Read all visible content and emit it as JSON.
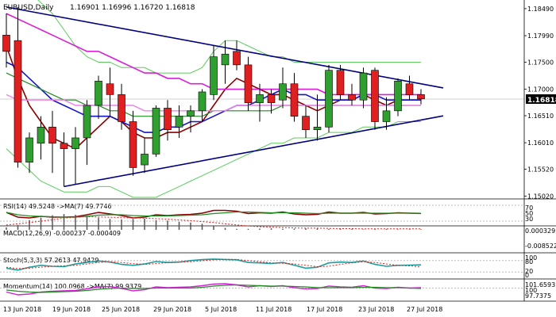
{
  "main": {
    "header": {
      "symbol": "EURUSD,Daily",
      "ohlc": "1.16901 1.16996 1.16720 1.16818"
    },
    "current_price": "1.16818",
    "price_labels": [
      "1.18490",
      "1.17990",
      "1.17500",
      "1.17000",
      "1.16510",
      "1.16010",
      "1.15520",
      "1.15020"
    ],
    "colors": {
      "bull_body": "#2fa02f",
      "bear_body": "#e02020",
      "wick": "#000000",
      "ma_fast": "#8b0000",
      "ma_mid": "#1414c8",
      "ma_slow": "#228b22",
      "ma_long": "#d81ed8",
      "ma_long2": "#ee82ee",
      "bb_band": "#5ccc5c",
      "trend_lines": "#000080"
    }
  },
  "panels": {
    "rsi": {
      "label": "RSI(14) 49.5248 ->MA(7) 49.7746",
      "scale": [
        "70",
        "50",
        "30"
      ]
    },
    "macd": {
      "label": "MACD(12,26,9) -0.000237 -0.000409",
      "scale": [
        "0.000329",
        "-0.008522"
      ]
    },
    "stoch": {
      "label": "Stoch(5,3,3) 57.2613 47.9429",
      "scale": [
        "100",
        "80",
        "20",
        "0"
      ]
    },
    "momentum": {
      "label": "Momentum(14) 100.0968 ->MA(7) 99.9379",
      "scale": [
        "101.6593",
        "100",
        "97.7375"
      ]
    }
  },
  "x_axis": [
    "13 Jun 2018",
    "19 Jun 2018",
    "25 Jun 2018",
    "29 Jun 2018",
    "5 Jul 2018",
    "11 Jul 2018",
    "17 Jul 2018",
    "23 Jul 2018",
    "27 Jul 2018"
  ],
  "chart_data": {
    "type": "candlestick",
    "symbol": "EURUSD",
    "timeframe": "Daily",
    "candles": [
      {
        "o": 1.18,
        "h": 1.184,
        "l": 1.174,
        "c": 1.177
      },
      {
        "o": 1.179,
        "h": 1.1852,
        "l": 1.1555,
        "c": 1.1565
      },
      {
        "o": 1.1565,
        "h": 1.162,
        "l": 1.1545,
        "c": 1.161
      },
      {
        "o": 1.16,
        "h": 1.165,
        "l": 1.157,
        "c": 1.163
      },
      {
        "o": 1.163,
        "h": 1.166,
        "l": 1.1545,
        "c": 1.16
      },
      {
        "o": 1.16,
        "h": 1.162,
        "l": 1.152,
        "c": 1.159
      },
      {
        "o": 1.159,
        "h": 1.163,
        "l": 1.1525,
        "c": 1.161
      },
      {
        "o": 1.161,
        "h": 1.168,
        "l": 1.156,
        "c": 1.167
      },
      {
        "o": 1.167,
        "h": 1.1725,
        "l": 1.1645,
        "c": 1.1715
      },
      {
        "o": 1.171,
        "h": 1.174,
        "l": 1.165,
        "c": 1.169
      },
      {
        "o": 1.169,
        "h": 1.171,
        "l": 1.1625,
        "c": 1.164
      },
      {
        "o": 1.164,
        "h": 1.166,
        "l": 1.154,
        "c": 1.1555
      },
      {
        "o": 1.156,
        "h": 1.161,
        "l": 1.1545,
        "c": 1.158
      },
      {
        "o": 1.158,
        "h": 1.167,
        "l": 1.1575,
        "c": 1.1665
      },
      {
        "o": 1.1665,
        "h": 1.168,
        "l": 1.1605,
        "c": 1.1625
      },
      {
        "o": 1.163,
        "h": 1.167,
        "l": 1.161,
        "c": 1.165
      },
      {
        "o": 1.165,
        "h": 1.167,
        "l": 1.162,
        "c": 1.166
      },
      {
        "o": 1.166,
        "h": 1.17,
        "l": 1.164,
        "c": 1.1695
      },
      {
        "o": 1.169,
        "h": 1.178,
        "l": 1.168,
        "c": 1.176
      },
      {
        "o": 1.1745,
        "h": 1.179,
        "l": 1.171,
        "c": 1.1765
      },
      {
        "o": 1.177,
        "h": 1.179,
        "l": 1.1735,
        "c": 1.1745
      },
      {
        "o": 1.1745,
        "h": 1.176,
        "l": 1.166,
        "c": 1.1675
      },
      {
        "o": 1.1675,
        "h": 1.171,
        "l": 1.164,
        "c": 1.169
      },
      {
        "o": 1.169,
        "h": 1.17,
        "l": 1.1655,
        "c": 1.1675
      },
      {
        "o": 1.168,
        "h": 1.174,
        "l": 1.1665,
        "c": 1.171
      },
      {
        "o": 1.171,
        "h": 1.173,
        "l": 1.164,
        "c": 1.165
      },
      {
        "o": 1.165,
        "h": 1.167,
        "l": 1.161,
        "c": 1.1625
      },
      {
        "o": 1.1625,
        "h": 1.169,
        "l": 1.1605,
        "c": 1.163
      },
      {
        "o": 1.163,
        "h": 1.1745,
        "l": 1.162,
        "c": 1.1735
      },
      {
        "o": 1.1735,
        "h": 1.1745,
        "l": 1.168,
        "c": 1.169
      },
      {
        "o": 1.169,
        "h": 1.171,
        "l": 1.167,
        "c": 1.168
      },
      {
        "o": 1.168,
        "h": 1.174,
        "l": 1.1665,
        "c": 1.173
      },
      {
        "o": 1.1735,
        "h": 1.174,
        "l": 1.1625,
        "c": 1.164
      },
      {
        "o": 1.164,
        "h": 1.1685,
        "l": 1.1625,
        "c": 1.166
      },
      {
        "o": 1.166,
        "h": 1.172,
        "l": 1.165,
        "c": 1.1715
      },
      {
        "o": 1.171,
        "h": 1.1725,
        "l": 1.168,
        "c": 1.169
      },
      {
        "o": 1.169,
        "h": 1.17,
        "l": 1.1672,
        "c": 1.1682
      }
    ],
    "moving_averages": [
      {
        "role": "ma_fast",
        "values": [
          1.178,
          1.172,
          1.167,
          1.164,
          1.161,
          1.16,
          1.159,
          1.161,
          1.163,
          1.165,
          1.164,
          1.162,
          1.161,
          1.161,
          1.162,
          1.162,
          1.163,
          1.164,
          1.167,
          1.17,
          1.172,
          1.171,
          1.17,
          1.169,
          1.169,
          1.168,
          1.167,
          1.166,
          1.167,
          1.168,
          1.168,
          1.169,
          1.168,
          1.167,
          1.168,
          1.168,
          1.168
        ]
      },
      {
        "role": "ma_mid",
        "values": [
          1.175,
          1.174,
          1.172,
          1.17,
          1.168,
          1.167,
          1.166,
          1.165,
          1.165,
          1.165,
          1.164,
          1.163,
          1.162,
          1.162,
          1.163,
          1.163,
          1.164,
          1.164,
          1.165,
          1.166,
          1.167,
          1.167,
          1.168,
          1.169,
          1.17,
          1.169,
          1.169,
          1.168,
          1.168,
          1.168,
          1.168,
          1.169,
          1.169,
          1.168,
          1.168,
          1.168,
          1.168
        ]
      },
      {
        "role": "ma_slow",
        "values": [
          1.173,
          1.172,
          1.171,
          1.17,
          1.169,
          1.168,
          1.168,
          1.167,
          1.167,
          1.166,
          1.166,
          1.165,
          1.165,
          1.165,
          1.165,
          1.165,
          1.165,
          1.165,
          1.166,
          1.166,
          1.166,
          1.166,
          1.166,
          1.166,
          1.167,
          1.167,
          1.167,
          1.167,
          1.167,
          1.167,
          1.167,
          1.167,
          1.167,
          1.167,
          1.167,
          1.167,
          1.167
        ]
      },
      {
        "role": "ma_long",
        "values": [
          1.184,
          1.183,
          1.182,
          1.181,
          1.18,
          1.179,
          1.178,
          1.177,
          1.177,
          1.176,
          1.175,
          1.174,
          1.173,
          1.173,
          1.172,
          1.172,
          1.171,
          1.171,
          1.17,
          1.17,
          1.17,
          1.17,
          1.17,
          1.17,
          1.17,
          1.17,
          1.17,
          1.17,
          1.169,
          1.169,
          1.169,
          1.169,
          1.169,
          1.169,
          1.169,
          1.169,
          1.169
        ]
      },
      {
        "role": "ma_long2",
        "values": [
          1.169,
          1.168,
          1.168,
          1.168,
          1.168,
          1.168,
          1.167,
          1.167,
          1.167,
          1.167,
          1.167,
          1.167,
          1.166,
          1.166,
          1.166,
          1.166,
          1.166,
          1.166,
          1.166,
          1.166,
          1.167,
          1.167,
          1.167,
          1.167,
          1.167,
          1.167,
          1.167,
          1.167,
          1.167,
          1.167,
          1.167,
          1.167,
          1.167,
          1.167,
          1.167,
          1.167,
          1.167
        ]
      }
    ],
    "bollinger": {
      "upper": [
        1.19,
        1.189,
        1.188,
        1.186,
        1.184,
        1.181,
        1.178,
        1.176,
        1.175,
        1.175,
        1.174,
        1.174,
        1.174,
        1.173,
        1.173,
        1.173,
        1.173,
        1.174,
        1.177,
        1.179,
        1.179,
        1.178,
        1.177,
        1.176,
        1.176,
        1.175,
        1.175,
        1.175,
        1.175,
        1.175,
        1.175,
        1.175,
        1.175,
        1.175,
        1.175,
        1.175,
        1.175
      ],
      "lower": [
        1.159,
        1.157,
        1.155,
        1.153,
        1.152,
        1.151,
        1.151,
        1.151,
        1.152,
        1.152,
        1.151,
        1.15,
        1.15,
        1.15,
        1.151,
        1.152,
        1.153,
        1.154,
        1.155,
        1.156,
        1.157,
        1.158,
        1.159,
        1.16,
        1.16,
        1.161,
        1.161,
        1.161,
        1.162,
        1.162,
        1.162,
        1.163,
        1.163,
        1.163,
        1.164,
        1.164,
        1.164
      ]
    },
    "trendlines": [
      {
        "from": {
          "i": 0,
          "price": 1.1852
        },
        "to": {
          "i": 36,
          "price": 1.171
        }
      },
      {
        "from": {
          "i": 5,
          "price": 1.152
        },
        "to": {
          "i": 36,
          "price": 1.1643
        }
      }
    ],
    "y_range": [
      1.15,
      1.1865
    ],
    "rsi": [
      52,
      40,
      38,
      42,
      40,
      40,
      41,
      46,
      52,
      48,
      44,
      38,
      40,
      46,
      44,
      46,
      47,
      50,
      57,
      57,
      55,
      49,
      51,
      50,
      53,
      48,
      46,
      47,
      53,
      50,
      50,
      52,
      48,
      49,
      51,
      50,
      49.5
    ],
    "rsi_ma": [
      52,
      46,
      43,
      42,
      41,
      40,
      40,
      42,
      45,
      46,
      46,
      44,
      43,
      43,
      43,
      44,
      45,
      46,
      49,
      51,
      53,
      53,
      52,
      51,
      51,
      51,
      50,
      49,
      50,
      50,
      50,
      50,
      50,
      50,
      50,
      50,
      49.8
    ],
    "macd_hist": [
      -0.001,
      -0.002,
      -0.004,
      -0.005,
      -0.006,
      -0.0065,
      -0.0062,
      -0.0058,
      -0.005,
      -0.0045,
      -0.0043,
      -0.0045,
      -0.0046,
      -0.004,
      -0.0038,
      -0.0033,
      -0.003,
      -0.0025,
      -0.0015,
      -0.0008,
      -0.0004,
      -0.0004,
      -0.0005,
      -0.0006,
      -0.0004,
      -0.0005,
      -0.0006,
      -0.0006,
      -0.0004,
      -0.0003,
      -0.0003,
      -0.0002,
      -0.0003,
      -0.0003,
      -0.0002,
      -0.0002,
      -0.00024
    ],
    "macd_signal": [
      -0.002,
      -0.0025,
      -0.003,
      -0.0036,
      -0.0042,
      -0.0048,
      -0.0052,
      -0.0054,
      -0.0053,
      -0.0052,
      -0.005,
      -0.0049,
      -0.0048,
      -0.0046,
      -0.0044,
      -0.0041,
      -0.0038,
      -0.0034,
      -0.003,
      -0.0025,
      -0.002,
      -0.0016,
      -0.0013,
      -0.0011,
      -0.0009,
      -0.0008,
      -0.0007,
      -0.0007,
      -0.0006,
      -0.0005,
      -0.0005,
      -0.0004,
      -0.0004,
      -0.0004,
      -0.0004,
      -0.0004,
      -0.00041
    ],
    "stoch_k": [
      40,
      30,
      45,
      55,
      50,
      48,
      62,
      70,
      78,
      72,
      60,
      55,
      62,
      75,
      70,
      72,
      80,
      85,
      88,
      86,
      84,
      70,
      68,
      64,
      70,
      56,
      40,
      45,
      68,
      72,
      70,
      78,
      60,
      50,
      55,
      56,
      57.3
    ],
    "stoch_d": [
      45,
      38,
      40,
      45,
      50,
      52,
      55,
      62,
      70,
      74,
      70,
      64,
      60,
      64,
      69,
      72,
      74,
      79,
      84,
      86,
      86,
      80,
      74,
      68,
      66,
      62,
      55,
      48,
      50,
      60,
      68,
      74,
      70,
      62,
      55,
      52,
      47.9
    ],
    "momentum": [
      99.0,
      98.3,
      98.5,
      99.0,
      99.2,
      99.3,
      99.4,
      99.8,
      100.3,
      100.4,
      99.9,
      99.3,
      99.6,
      100.3,
      100.1,
      100.2,
      100.3,
      100.6,
      101.0,
      101.1,
      100.8,
      100.3,
      100.6,
      100.4,
      100.6,
      100.1,
      99.8,
      99.9,
      100.5,
      100.3,
      100.2,
      100.6,
      100.0,
      99.9,
      100.2,
      100.0,
      100.1
    ],
    "momentum_ma": [
      99.5,
      99.2,
      99.0,
      98.9,
      99.0,
      99.1,
      99.2,
      99.4,
      99.7,
      99.9,
      100.0,
      99.9,
      99.9,
      100.0,
      100.0,
      100.0,
      100.0,
      100.2,
      100.5,
      100.7,
      100.8,
      100.7,
      100.6,
      100.5,
      100.5,
      100.4,
      100.3,
      100.1,
      100.1,
      100.1,
      100.1,
      100.2,
      100.2,
      100.1,
      100.1,
      100.0,
      99.9
    ]
  }
}
